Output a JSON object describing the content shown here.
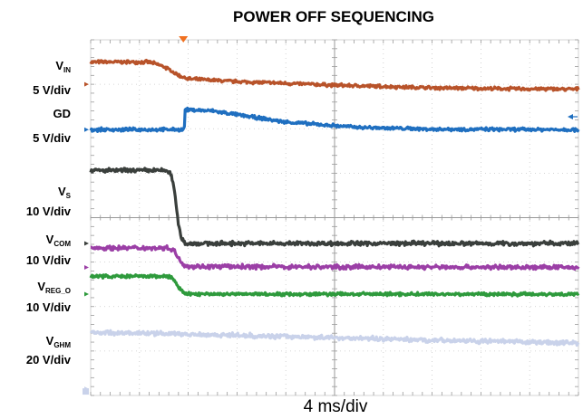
{
  "chart_data": {
    "type": "line",
    "title": "POWER OFF SEQUENCING",
    "xlabel": "4 ms/div",
    "x_divisions": 10,
    "y_divisions": 8,
    "grid": true,
    "trigger_x": 1.9,
    "x_unit": "div",
    "y_unit": "div",
    "colors": {
      "grid": "#c8c8c8",
      "axis": "#9a9a9a",
      "trigger": "#f07020",
      "vin": "#b8532a",
      "gd": "#1f6fc0",
      "vs": "#3a3f3c",
      "vcom": "#9b3fa6",
      "vreg": "#2e9a3c",
      "vghm": "#c9d2ea"
    },
    "series": [
      {
        "key": "vin",
        "label_main": "V",
        "label_sub": "IN",
        "scale": "5 V/div",
        "ground": 7.0,
        "noise": 0.03,
        "points": [
          [
            0,
            7.5
          ],
          [
            1.2,
            7.5
          ],
          [
            1.5,
            7.4
          ],
          [
            1.8,
            7.2
          ],
          [
            2.0,
            7.12
          ],
          [
            3,
            7.06
          ],
          [
            5,
            6.98
          ],
          [
            7,
            6.92
          ],
          [
            8.5,
            6.9
          ],
          [
            10,
            6.89
          ]
        ]
      },
      {
        "key": "gd",
        "label_main": "GD",
        "label_sub": "",
        "scale": "5 V/div",
        "ground": 5.98,
        "noise": 0.03,
        "points": [
          [
            0,
            5.98
          ],
          [
            1.92,
            5.98
          ],
          [
            1.93,
            6.43
          ],
          [
            2.5,
            6.4
          ],
          [
            4,
            6.15
          ],
          [
            5.5,
            6.03
          ],
          [
            7,
            5.99
          ],
          [
            10,
            5.98
          ]
        ]
      },
      {
        "key": "vs",
        "label_main": "V",
        "label_sub": "S",
        "scale": "10 V/div",
        "ground": 3.42,
        "noise": 0.04,
        "points": [
          [
            0,
            5.06
          ],
          [
            1.55,
            5.06
          ],
          [
            1.65,
            4.98
          ],
          [
            1.72,
            4.6
          ],
          [
            1.78,
            4.0
          ],
          [
            1.85,
            3.55
          ],
          [
            1.95,
            3.42
          ],
          [
            10,
            3.42
          ]
        ]
      },
      {
        "key": "vcom",
        "label_main": "V",
        "label_sub": "COM",
        "scale": "10 V/div",
        "ground": 2.88,
        "noise": 0.04,
        "points": [
          [
            0,
            3.32
          ],
          [
            1.6,
            3.32
          ],
          [
            1.7,
            3.28
          ],
          [
            1.8,
            3.08
          ],
          [
            1.92,
            2.93
          ],
          [
            2.1,
            2.9
          ],
          [
            10,
            2.88
          ]
        ]
      },
      {
        "key": "vreg",
        "label_main": "V",
        "label_sub": "REG_O",
        "scale": "10 V/div",
        "ground": 2.28,
        "noise": 0.03,
        "points": [
          [
            0,
            2.68
          ],
          [
            1.6,
            2.68
          ],
          [
            1.7,
            2.62
          ],
          [
            1.8,
            2.42
          ],
          [
            1.92,
            2.3
          ],
          [
            2.1,
            2.28
          ],
          [
            10,
            2.28
          ]
        ]
      },
      {
        "key": "vghm",
        "label_main": "V",
        "label_sub": "GHM",
        "scale": "20 V/div",
        "ground": 0.15,
        "noise": 0.04,
        "points": [
          [
            0,
            1.42
          ],
          [
            2,
            1.38
          ],
          [
            5,
            1.3
          ],
          [
            8,
            1.22
          ],
          [
            10,
            1.18
          ]
        ]
      }
    ]
  }
}
